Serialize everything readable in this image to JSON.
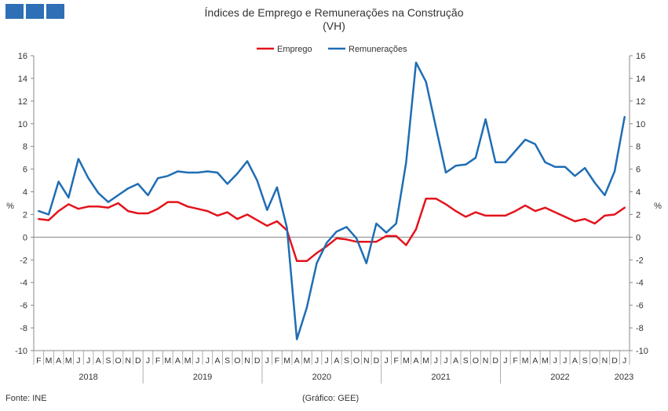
{
  "header": {
    "logo": "logo-blocks"
  },
  "chart_data": {
    "type": "line",
    "title": "Índices de Emprego e Remunerações na Construção",
    "subtitle": "(VH)",
    "ylabel": "%",
    "ylim": [
      -10,
      16
    ],
    "yticks": [
      "16",
      "14",
      "12",
      "10",
      "8",
      "6",
      "4",
      "2",
      "0",
      "-2",
      "-4",
      "-6",
      "-8",
      "-10"
    ],
    "grid": false,
    "legend": "top-center",
    "month_labels": [
      "F",
      "M",
      "A",
      "M",
      "J",
      "J",
      "A",
      "S",
      "O",
      "N",
      "D",
      "J",
      "F",
      "M",
      "A",
      "M",
      "J",
      "J",
      "A",
      "S",
      "O",
      "N",
      "D",
      "J",
      "F",
      "M",
      "A",
      "M",
      "J",
      "J",
      "A",
      "S",
      "O",
      "N",
      "D",
      "J",
      "F",
      "M",
      "A",
      "M",
      "J",
      "J",
      "A",
      "S",
      "O",
      "N",
      "D",
      "J",
      "F",
      "M",
      "A",
      "M",
      "J",
      "J",
      "A",
      "S",
      "O",
      "N",
      "D",
      "J"
    ],
    "years": [
      {
        "label": "2018",
        "start": 0,
        "end": 10
      },
      {
        "label": "2019",
        "start": 11,
        "end": 22
      },
      {
        "label": "2020",
        "start": 23,
        "end": 34
      },
      {
        "label": "2021",
        "start": 35,
        "end": 46
      },
      {
        "label": "2022",
        "start": 47,
        "end": 58
      },
      {
        "label": "2023",
        "start": 59,
        "end": 59
      }
    ],
    "series": [
      {
        "name": "Emprego",
        "color": "#e3131b",
        "values": [
          1.6,
          1.5,
          2.3,
          2.9,
          2.5,
          2.7,
          2.7,
          2.6,
          3.0,
          2.3,
          2.1,
          2.1,
          2.5,
          3.1,
          3.1,
          2.7,
          2.5,
          2.3,
          1.9,
          2.2,
          1.6,
          2.0,
          1.5,
          1.0,
          1.4,
          0.6,
          -2.1,
          -2.1,
          -1.4,
          -0.8,
          -0.1,
          -0.2,
          -0.4,
          -0.4,
          -0.4,
          0.1,
          0.1,
          -0.7,
          0.7,
          3.4,
          3.4,
          2.9,
          2.3,
          1.8,
          2.2,
          1.9,
          1.9,
          1.9,
          2.3,
          2.8,
          2.3,
          2.6,
          2.2,
          1.8,
          1.4,
          1.6,
          1.2,
          1.9,
          2.0,
          2.6
        ]
      },
      {
        "name": "Remunerações",
        "color": "#1f6db4",
        "values": [
          2.3,
          2.0,
          4.9,
          3.5,
          6.9,
          5.2,
          3.9,
          3.1,
          3.7,
          4.3,
          4.7,
          3.7,
          5.2,
          5.4,
          5.8,
          5.7,
          5.7,
          5.8,
          5.7,
          4.7,
          5.6,
          6.7,
          5.0,
          2.4,
          4.4,
          0.8,
          -9.0,
          -6.2,
          -2.3,
          -0.5,
          0.5,
          0.9,
          -0.1,
          -2.3,
          1.2,
          0.4,
          1.2,
          6.6,
          15.4,
          13.7,
          9.7,
          5.7,
          6.3,
          6.4,
          7.0,
          10.4,
          6.6,
          6.6,
          7.6,
          8.6,
          8.2,
          6.6,
          6.2,
          6.2,
          5.4,
          6.1,
          4.8,
          3.7,
          5.8,
          10.6
        ]
      }
    ]
  },
  "footer": {
    "source": "Fonte: INE",
    "credit": "(Gráfico: GEE)"
  }
}
